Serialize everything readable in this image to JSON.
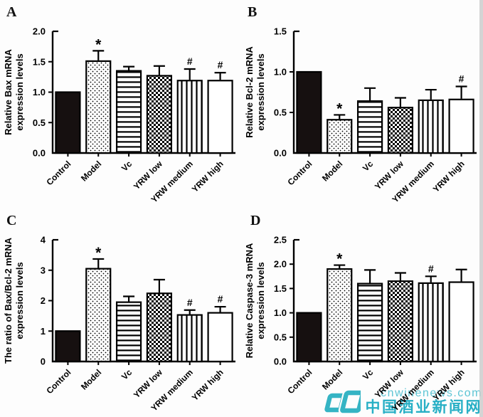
{
  "colors": {
    "bar_solid": "#161010",
    "ink": "#000000",
    "watermark_teal": "#35b6c6",
    "watermark_url_teal": "#5ec7d6"
  },
  "watermark": {
    "url_text": "cnwinenews.com",
    "site_name": "中国酒业新闻网"
  },
  "chart_data": [
    {
      "type": "bar",
      "panel": "A",
      "ylabel_lines": [
        "Relative Bax mRNA",
        "expression levels"
      ],
      "ylim": [
        0,
        2.0
      ],
      "ytick_values": [
        0.0,
        0.5,
        1.0,
        1.5,
        2.0
      ],
      "ytick_labels": [
        "0.0",
        "0.5",
        "1.0",
        "1.5",
        "2.0"
      ],
      "categories": [
        "Control",
        "Model",
        "Vc",
        "YRW low",
        "YRW medium",
        "YRW high"
      ],
      "values": [
        1.0,
        1.51,
        1.35,
        1.27,
        1.19,
        1.19
      ],
      "errors": [
        0,
        0.17,
        0.07,
        0.16,
        0.19,
        0.13
      ],
      "sig": [
        "",
        "*",
        "",
        "",
        "#",
        "#"
      ],
      "patterns": [
        "solid",
        "dots",
        "hlines",
        "checker",
        "vlines",
        "open"
      ],
      "grid": false,
      "legend": "none"
    },
    {
      "type": "bar",
      "panel": "B",
      "ylabel_lines": [
        "Relative Bcl-2 mRNA",
        "expression levels"
      ],
      "ylim": [
        0,
        1.5
      ],
      "ytick_values": [
        0.0,
        0.5,
        1.0,
        1.5
      ],
      "ytick_labels": [
        "0.0",
        "0.5",
        "1.0",
        "1.5"
      ],
      "categories": [
        "Control",
        "Model",
        "Vc",
        "YRW low",
        "YRW medium",
        "YRW high"
      ],
      "values": [
        1.0,
        0.41,
        0.64,
        0.56,
        0.65,
        0.66
      ],
      "errors": [
        0,
        0.06,
        0.16,
        0.12,
        0.13,
        0.16
      ],
      "sig": [
        "",
        "*",
        "",
        "",
        "",
        "#"
      ],
      "patterns": [
        "solid",
        "dots",
        "hlines",
        "checker",
        "vlines",
        "open"
      ],
      "grid": false,
      "legend": "none"
    },
    {
      "type": "bar",
      "panel": "C",
      "ylabel_lines": [
        "The ratio of Bax/Bcl-2 mRNA",
        "expression levels"
      ],
      "ylim": [
        0,
        4
      ],
      "ytick_values": [
        0,
        1,
        2,
        3,
        4
      ],
      "ytick_labels": [
        "0",
        "1",
        "2",
        "3",
        "4"
      ],
      "categories": [
        "Control",
        "Model",
        "Vc",
        "YRW low",
        "YRW medium",
        "YRW high"
      ],
      "values": [
        1.0,
        3.05,
        1.95,
        2.24,
        1.53,
        1.6
      ],
      "errors": [
        0,
        0.32,
        0.19,
        0.45,
        0.16,
        0.2
      ],
      "sig": [
        "",
        "*",
        "",
        "",
        "#",
        "#"
      ],
      "patterns": [
        "solid",
        "dots",
        "hlines",
        "checker",
        "vlines",
        "open"
      ],
      "grid": false,
      "legend": "none"
    },
    {
      "type": "bar",
      "panel": "D",
      "ylabel_lines": [
        "Relative Caspase-3 mRNA",
        "expression levels"
      ],
      "ylim": [
        0,
        2.5
      ],
      "ytick_values": [
        0.0,
        0.5,
        1.0,
        1.5,
        2.0,
        2.5
      ],
      "ytick_labels": [
        "0.0",
        "0.5",
        "1.0",
        "1.5",
        "2.0",
        "2.5"
      ],
      "categories": [
        "Control",
        "Model",
        "Vc",
        "YRW low",
        "YRW medium",
        "YRW high"
      ],
      "values": [
        1.0,
        1.9,
        1.6,
        1.65,
        1.61,
        1.63
      ],
      "errors": [
        0,
        0.08,
        0.28,
        0.17,
        0.14,
        0.26
      ],
      "sig": [
        "",
        "*",
        "",
        "",
        "#",
        ""
      ],
      "patterns": [
        "solid",
        "dots",
        "hlines",
        "checker",
        "vlines",
        "open"
      ],
      "grid": false,
      "legend": "none"
    }
  ]
}
